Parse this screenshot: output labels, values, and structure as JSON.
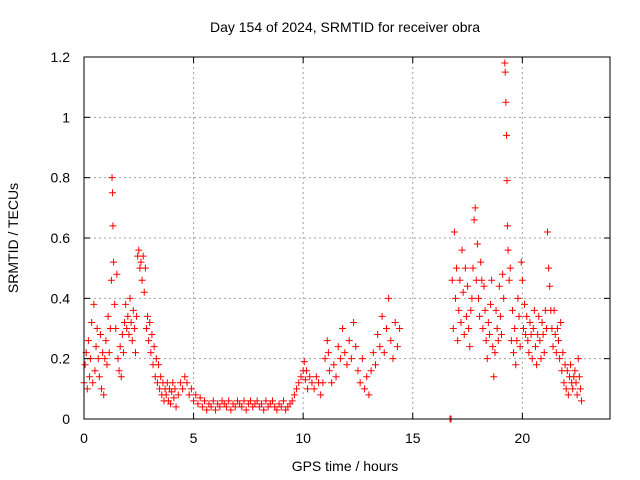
{
  "chart_data": {
    "type": "scatter",
    "title": "Day 154 of 2024, SRMTID for receiver obra",
    "xlabel": "GPS time / hours",
    "ylabel": "SRMTID / TECUs",
    "xlim": [
      0,
      24
    ],
    "ylim": [
      0,
      1.2
    ],
    "x_ticks": [
      0,
      5,
      10,
      15,
      20
    ],
    "x_tick_labels": [
      "0",
      "5",
      "10",
      "15",
      "20"
    ],
    "y_ticks": [
      0,
      0.2,
      0.4,
      0.6,
      0.8,
      1.0,
      1.2
    ],
    "y_tick_labels": [
      "0",
      "0.2",
      "0.4",
      "0.6",
      "0.8",
      "1",
      "1.2"
    ],
    "grid": true,
    "marker": "+",
    "color": "#ff0000",
    "series": [
      {
        "name": "SRMTID",
        "points": [
          [
            0.0,
            0.12
          ],
          [
            0.05,
            0.18
          ],
          [
            0.1,
            0.22
          ],
          [
            0.15,
            0.1
          ],
          [
            0.2,
            0.26
          ],
          [
            0.25,
            0.14
          ],
          [
            0.3,
            0.2
          ],
          [
            0.35,
            0.32
          ],
          [
            0.4,
            0.12
          ],
          [
            0.45,
            0.38
          ],
          [
            0.5,
            0.16
          ],
          [
            0.55,
            0.24
          ],
          [
            0.6,
            0.3
          ],
          [
            0.65,
            0.2
          ],
          [
            0.7,
            0.14
          ],
          [
            0.75,
            0.28
          ],
          [
            0.8,
            0.1
          ],
          [
            0.85,
            0.22
          ],
          [
            0.9,
            0.08
          ],
          [
            0.95,
            0.2
          ],
          [
            1.0,
            0.26
          ],
          [
            1.05,
            0.18
          ],
          [
            1.1,
            0.34
          ],
          [
            1.15,
            0.22
          ],
          [
            1.2,
            0.3
          ],
          [
            1.25,
            0.46
          ],
          [
            1.28,
            0.8
          ],
          [
            1.3,
            0.75
          ],
          [
            1.32,
            0.64
          ],
          [
            1.35,
            0.52
          ],
          [
            1.4,
            0.38
          ],
          [
            1.45,
            0.3
          ],
          [
            1.5,
            0.48
          ],
          [
            1.55,
            0.2
          ],
          [
            1.6,
            0.16
          ],
          [
            1.65,
            0.24
          ],
          [
            1.7,
            0.14
          ],
          [
            1.75,
            0.28
          ],
          [
            1.8,
            0.22
          ],
          [
            1.85,
            0.32
          ],
          [
            1.9,
            0.38
          ],
          [
            1.95,
            0.3
          ],
          [
            2.0,
            0.34
          ],
          [
            2.05,
            0.28
          ],
          [
            2.1,
            0.4
          ],
          [
            2.15,
            0.32
          ],
          [
            2.2,
            0.26
          ],
          [
            2.25,
            0.36
          ],
          [
            2.3,
            0.3
          ],
          [
            2.35,
            0.22
          ],
          [
            2.4,
            0.34
          ],
          [
            2.45,
            0.54
          ],
          [
            2.5,
            0.56
          ],
          [
            2.55,
            0.5
          ],
          [
            2.6,
            0.52
          ],
          [
            2.65,
            0.46
          ],
          [
            2.7,
            0.54
          ],
          [
            2.75,
            0.42
          ],
          [
            2.8,
            0.5
          ],
          [
            2.85,
            0.3
          ],
          [
            2.9,
            0.34
          ],
          [
            2.95,
            0.26
          ],
          [
            3.0,
            0.32
          ],
          [
            3.05,
            0.22
          ],
          [
            3.1,
            0.28
          ],
          [
            3.15,
            0.18
          ],
          [
            3.2,
            0.24
          ],
          [
            3.25,
            0.14
          ],
          [
            3.3,
            0.2
          ],
          [
            3.35,
            0.12
          ],
          [
            3.4,
            0.18
          ],
          [
            3.45,
            0.1
          ],
          [
            3.5,
            0.14
          ],
          [
            3.55,
            0.08
          ],
          [
            3.6,
            0.12
          ],
          [
            3.65,
            0.06
          ],
          [
            3.7,
            0.1
          ],
          [
            3.75,
            0.08
          ],
          [
            3.8,
            0.12
          ],
          [
            3.85,
            0.06
          ],
          [
            3.9,
            0.1
          ],
          [
            3.95,
            0.05
          ],
          [
            4.0,
            0.09
          ],
          [
            4.05,
            0.12
          ],
          [
            4.1,
            0.07
          ],
          [
            4.15,
            0.1
          ],
          [
            4.2,
            0.04
          ],
          [
            4.3,
            0.08
          ],
          [
            4.4,
            0.12
          ],
          [
            4.5,
            0.1
          ],
          [
            4.6,
            0.14
          ],
          [
            4.7,
            0.12
          ],
          [
            4.8,
            0.08
          ],
          [
            4.9,
            0.1
          ],
          [
            5.0,
            0.06
          ],
          [
            5.1,
            0.08
          ],
          [
            5.2,
            0.05
          ],
          [
            5.3,
            0.07
          ],
          [
            5.4,
            0.04
          ],
          [
            5.5,
            0.06
          ],
          [
            5.6,
            0.03
          ],
          [
            5.7,
            0.05
          ],
          [
            5.8,
            0.04
          ],
          [
            5.9,
            0.06
          ],
          [
            6.0,
            0.03
          ],
          [
            6.1,
            0.05
          ],
          [
            6.2,
            0.04
          ],
          [
            6.3,
            0.06
          ],
          [
            6.4,
            0.05
          ],
          [
            6.5,
            0.04
          ],
          [
            6.6,
            0.06
          ],
          [
            6.7,
            0.03
          ],
          [
            6.8,
            0.05
          ],
          [
            6.9,
            0.04
          ],
          [
            7.0,
            0.06
          ],
          [
            7.1,
            0.05
          ],
          [
            7.2,
            0.04
          ],
          [
            7.3,
            0.06
          ],
          [
            7.4,
            0.03
          ],
          [
            7.5,
            0.05
          ],
          [
            7.6,
            0.06
          ],
          [
            7.7,
            0.04
          ],
          [
            7.8,
            0.05
          ],
          [
            7.9,
            0.06
          ],
          [
            8.0,
            0.04
          ],
          [
            8.1,
            0.05
          ],
          [
            8.2,
            0.03
          ],
          [
            8.3,
            0.06
          ],
          [
            8.4,
            0.04
          ],
          [
            8.5,
            0.05
          ],
          [
            8.6,
            0.06
          ],
          [
            8.7,
            0.04
          ],
          [
            8.8,
            0.03
          ],
          [
            8.9,
            0.05
          ],
          [
            9.0,
            0.04
          ],
          [
            9.1,
            0.06
          ],
          [
            9.2,
            0.03
          ],
          [
            9.3,
            0.04
          ],
          [
            9.4,
            0.05
          ],
          [
            9.5,
            0.06
          ],
          [
            9.6,
            0.08
          ],
          [
            9.7,
            0.1
          ],
          [
            9.8,
            0.12
          ],
          [
            9.9,
            0.14
          ],
          [
            10.0,
            0.16
          ],
          [
            10.05,
            0.19
          ],
          [
            10.1,
            0.13
          ],
          [
            10.15,
            0.16
          ],
          [
            10.2,
            0.1
          ],
          [
            10.3,
            0.14
          ],
          [
            10.4,
            0.12
          ],
          [
            10.5,
            0.1
          ],
          [
            10.6,
            0.14
          ],
          [
            10.7,
            0.12
          ],
          [
            10.8,
            0.08
          ],
          [
            10.9,
            0.12
          ],
          [
            11.0,
            0.2
          ],
          [
            11.1,
            0.26
          ],
          [
            11.15,
            0.22
          ],
          [
            11.2,
            0.16
          ],
          [
            11.3,
            0.12
          ],
          [
            11.4,
            0.18
          ],
          [
            11.5,
            0.14
          ],
          [
            11.6,
            0.24
          ],
          [
            11.7,
            0.2
          ],
          [
            11.8,
            0.3
          ],
          [
            11.9,
            0.22
          ],
          [
            12.0,
            0.18
          ],
          [
            12.1,
            0.26
          ],
          [
            12.2,
            0.2
          ],
          [
            12.3,
            0.32
          ],
          [
            12.4,
            0.24
          ],
          [
            12.5,
            0.16
          ],
          [
            12.6,
            0.12
          ],
          [
            12.7,
            0.2
          ],
          [
            12.8,
            0.1
          ],
          [
            12.9,
            0.14
          ],
          [
            13.0,
            0.08
          ],
          [
            13.1,
            0.16
          ],
          [
            13.2,
            0.22
          ],
          [
            13.3,
            0.18
          ],
          [
            13.4,
            0.28
          ],
          [
            13.5,
            0.24
          ],
          [
            13.6,
            0.34
          ],
          [
            13.7,
            0.22
          ],
          [
            13.8,
            0.3
          ],
          [
            13.9,
            0.4
          ],
          [
            14.0,
            0.26
          ],
          [
            14.1,
            0.2
          ],
          [
            14.2,
            0.32
          ],
          [
            14.3,
            0.24
          ],
          [
            14.4,
            0.3
          ],
          [
            16.7,
            0.0
          ],
          [
            16.75,
            0.0
          ],
          [
            16.8,
            0.46
          ],
          [
            16.85,
            0.3
          ],
          [
            16.9,
            0.62
          ],
          [
            16.95,
            0.4
          ],
          [
            17.0,
            0.5
          ],
          [
            17.05,
            0.26
          ],
          [
            17.1,
            0.36
          ],
          [
            17.15,
            0.46
          ],
          [
            17.2,
            0.32
          ],
          [
            17.25,
            0.56
          ],
          [
            17.3,
            0.42
          ],
          [
            17.35,
            0.28
          ],
          [
            17.4,
            0.5
          ],
          [
            17.45,
            0.34
          ],
          [
            17.5,
            0.44
          ],
          [
            17.55,
            0.3
          ],
          [
            17.6,
            0.24
          ],
          [
            17.65,
            0.36
          ],
          [
            17.7,
            0.4
          ],
          [
            17.75,
            0.5
          ],
          [
            17.8,
            0.66
          ],
          [
            17.85,
            0.7
          ],
          [
            17.9,
            0.46
          ],
          [
            17.95,
            0.58
          ],
          [
            18.0,
            0.4
          ],
          [
            18.05,
            0.34
          ],
          [
            18.1,
            0.52
          ],
          [
            18.15,
            0.46
          ],
          [
            18.2,
            0.3
          ],
          [
            18.25,
            0.44
          ],
          [
            18.3,
            0.36
          ],
          [
            18.35,
            0.26
          ],
          [
            18.4,
            0.2
          ],
          [
            18.45,
            0.32
          ],
          [
            18.5,
            0.28
          ],
          [
            18.55,
            0.38
          ],
          [
            18.6,
            0.46
          ],
          [
            18.65,
            0.24
          ],
          [
            18.7,
            0.14
          ],
          [
            18.75,
            0.22
          ],
          [
            18.8,
            0.36
          ],
          [
            18.85,
            0.3
          ],
          [
            18.9,
            0.26
          ],
          [
            18.95,
            0.44
          ],
          [
            19.0,
            0.34
          ],
          [
            19.05,
            0.28
          ],
          [
            19.1,
            0.48
          ],
          [
            19.15,
            0.4
          ],
          [
            19.2,
            1.18
          ],
          [
            19.22,
            1.15
          ],
          [
            19.25,
            1.05
          ],
          [
            19.28,
            0.94
          ],
          [
            19.3,
            0.79
          ],
          [
            19.32,
            0.64
          ],
          [
            19.35,
            0.56
          ],
          [
            19.4,
            0.46
          ],
          [
            19.45,
            0.5
          ],
          [
            19.5,
            0.26
          ],
          [
            19.55,
            0.36
          ],
          [
            19.6,
            0.22
          ],
          [
            19.65,
            0.3
          ],
          [
            19.7,
            0.18
          ],
          [
            19.75,
            0.26
          ],
          [
            19.8,
            0.4
          ],
          [
            19.85,
            0.34
          ],
          [
            19.9,
            0.24
          ],
          [
            19.95,
            0.52
          ],
          [
            20.0,
            0.46
          ],
          [
            20.05,
            0.3
          ],
          [
            20.1,
            0.38
          ],
          [
            20.15,
            0.28
          ],
          [
            20.2,
            0.34
          ],
          [
            20.25,
            0.26
          ],
          [
            20.3,
            0.22
          ],
          [
            20.35,
            0.32
          ],
          [
            20.4,
            0.28
          ],
          [
            20.45,
            0.2
          ],
          [
            20.5,
            0.3
          ],
          [
            20.55,
            0.36
          ],
          [
            20.6,
            0.24
          ],
          [
            20.65,
            0.18
          ],
          [
            20.7,
            0.28
          ],
          [
            20.75,
            0.34
          ],
          [
            20.8,
            0.26
          ],
          [
            20.85,
            0.2
          ],
          [
            20.9,
            0.32
          ],
          [
            20.95,
            0.28
          ],
          [
            21.0,
            0.22
          ],
          [
            21.05,
            0.36
          ],
          [
            21.1,
            0.3
          ],
          [
            21.15,
            0.62
          ],
          [
            21.2,
            0.5
          ],
          [
            21.25,
            0.44
          ],
          [
            21.3,
            0.36
          ],
          [
            21.35,
            0.3
          ],
          [
            21.4,
            0.24
          ],
          [
            21.45,
            0.36
          ],
          [
            21.5,
            0.28
          ],
          [
            21.55,
            0.22
          ],
          [
            21.6,
            0.3
          ],
          [
            21.65,
            0.26
          ],
          [
            21.7,
            0.2
          ],
          [
            21.75,
            0.32
          ],
          [
            21.8,
            0.16
          ],
          [
            21.85,
            0.22
          ],
          [
            21.9,
            0.12
          ],
          [
            21.95,
            0.18
          ],
          [
            22.0,
            0.1
          ],
          [
            22.05,
            0.16
          ],
          [
            22.1,
            0.08
          ],
          [
            22.15,
            0.14
          ],
          [
            22.2,
            0.18
          ],
          [
            22.25,
            0.12
          ],
          [
            22.3,
            0.1
          ],
          [
            22.35,
            0.14
          ],
          [
            22.4,
            0.16
          ],
          [
            22.45,
            0.12
          ],
          [
            22.5,
            0.08
          ],
          [
            22.55,
            0.2
          ],
          [
            22.6,
            0.14
          ],
          [
            22.65,
            0.1
          ],
          [
            22.7,
            0.06
          ]
        ]
      }
    ]
  }
}
